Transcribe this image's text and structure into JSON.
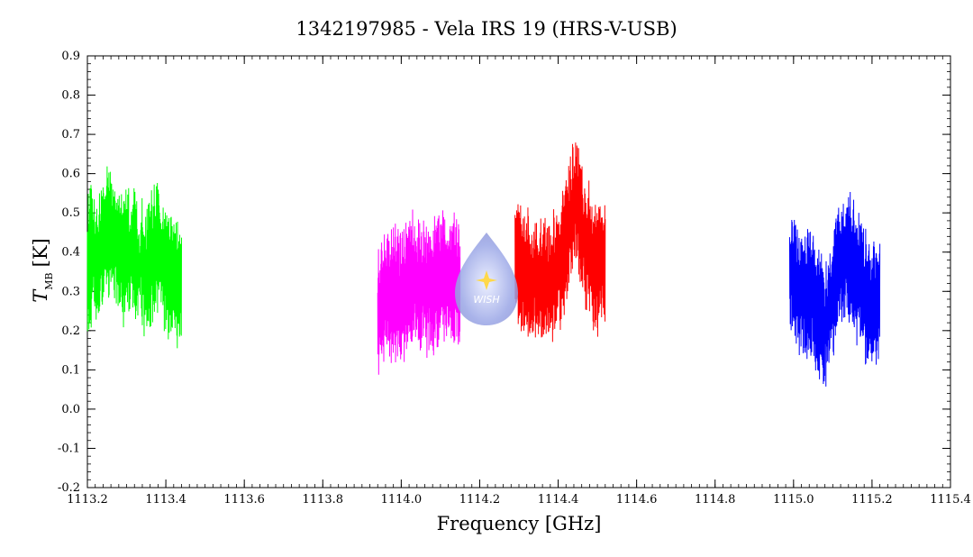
{
  "chart_data": {
    "type": "line",
    "title": "1342197985 - Vela IRS 19 (HRS-V-USB)",
    "xlabel": "Frequency [GHz]",
    "ylabel_symbol": "T",
    "ylabel_subscript": "MB",
    "ylabel_unit": "[K]",
    "xlim": [
      1113.2,
      1115.4
    ],
    "ylim": [
      -0.2,
      0.9
    ],
    "x_ticks": [
      1113.2,
      1113.4,
      1113.6,
      1113.8,
      1114.0,
      1114.2,
      1114.4,
      1114.6,
      1114.8,
      1115.0,
      1115.2,
      1115.4
    ],
    "x_tick_labels": [
      "1113.2",
      "1113.4",
      "1113.6",
      "1113.8",
      "1114.0",
      "1114.2",
      "1114.4",
      "1114.6",
      "1114.8",
      "1115.0",
      "1115.2",
      "1115.4"
    ],
    "y_ticks": [
      -0.2,
      -0.1,
      0.0,
      0.1,
      0.2,
      0.3,
      0.4,
      0.5,
      0.6,
      0.7,
      0.8,
      0.9
    ],
    "y_tick_labels": [
      "-0.2",
      "-0.1",
      "0.0",
      "0.1",
      "0.2",
      "0.3",
      "0.4",
      "0.5",
      "0.6",
      "0.7",
      "0.8",
      "0.9"
    ],
    "grid": false,
    "series": [
      {
        "color": "#00ff00",
        "x": [
          1113.2,
          1113.23,
          1113.26,
          1113.29,
          1113.32,
          1113.35,
          1113.38,
          1113.41,
          1113.44
        ],
        "y": [
          0.38,
          0.4,
          0.45,
          0.38,
          0.4,
          0.35,
          0.42,
          0.33,
          0.3
        ]
      },
      {
        "color": "#ff00ff",
        "x": [
          1113.94,
          1113.97,
          1114.0,
          1114.03,
          1114.06,
          1114.09,
          1114.12,
          1114.15
        ],
        "y": [
          0.25,
          0.3,
          0.28,
          0.33,
          0.3,
          0.32,
          0.35,
          0.3
        ]
      },
      {
        "color": "#ff0000",
        "x": [
          1114.29,
          1114.32,
          1114.35,
          1114.38,
          1114.41,
          1114.44,
          1114.47,
          1114.5,
          1114.52
        ],
        "y": [
          0.38,
          0.33,
          0.32,
          0.33,
          0.38,
          0.55,
          0.42,
          0.35,
          0.38
        ]
      },
      {
        "color": "#0000ff",
        "x": [
          1114.99,
          1115.02,
          1115.05,
          1115.08,
          1115.11,
          1115.14,
          1115.17,
          1115.2,
          1115.22
        ],
        "y": [
          0.35,
          0.3,
          0.28,
          0.2,
          0.35,
          0.38,
          0.32,
          0.25,
          0.28
        ]
      }
    ],
    "logo": {
      "text": "WISH",
      "position": "center"
    }
  }
}
